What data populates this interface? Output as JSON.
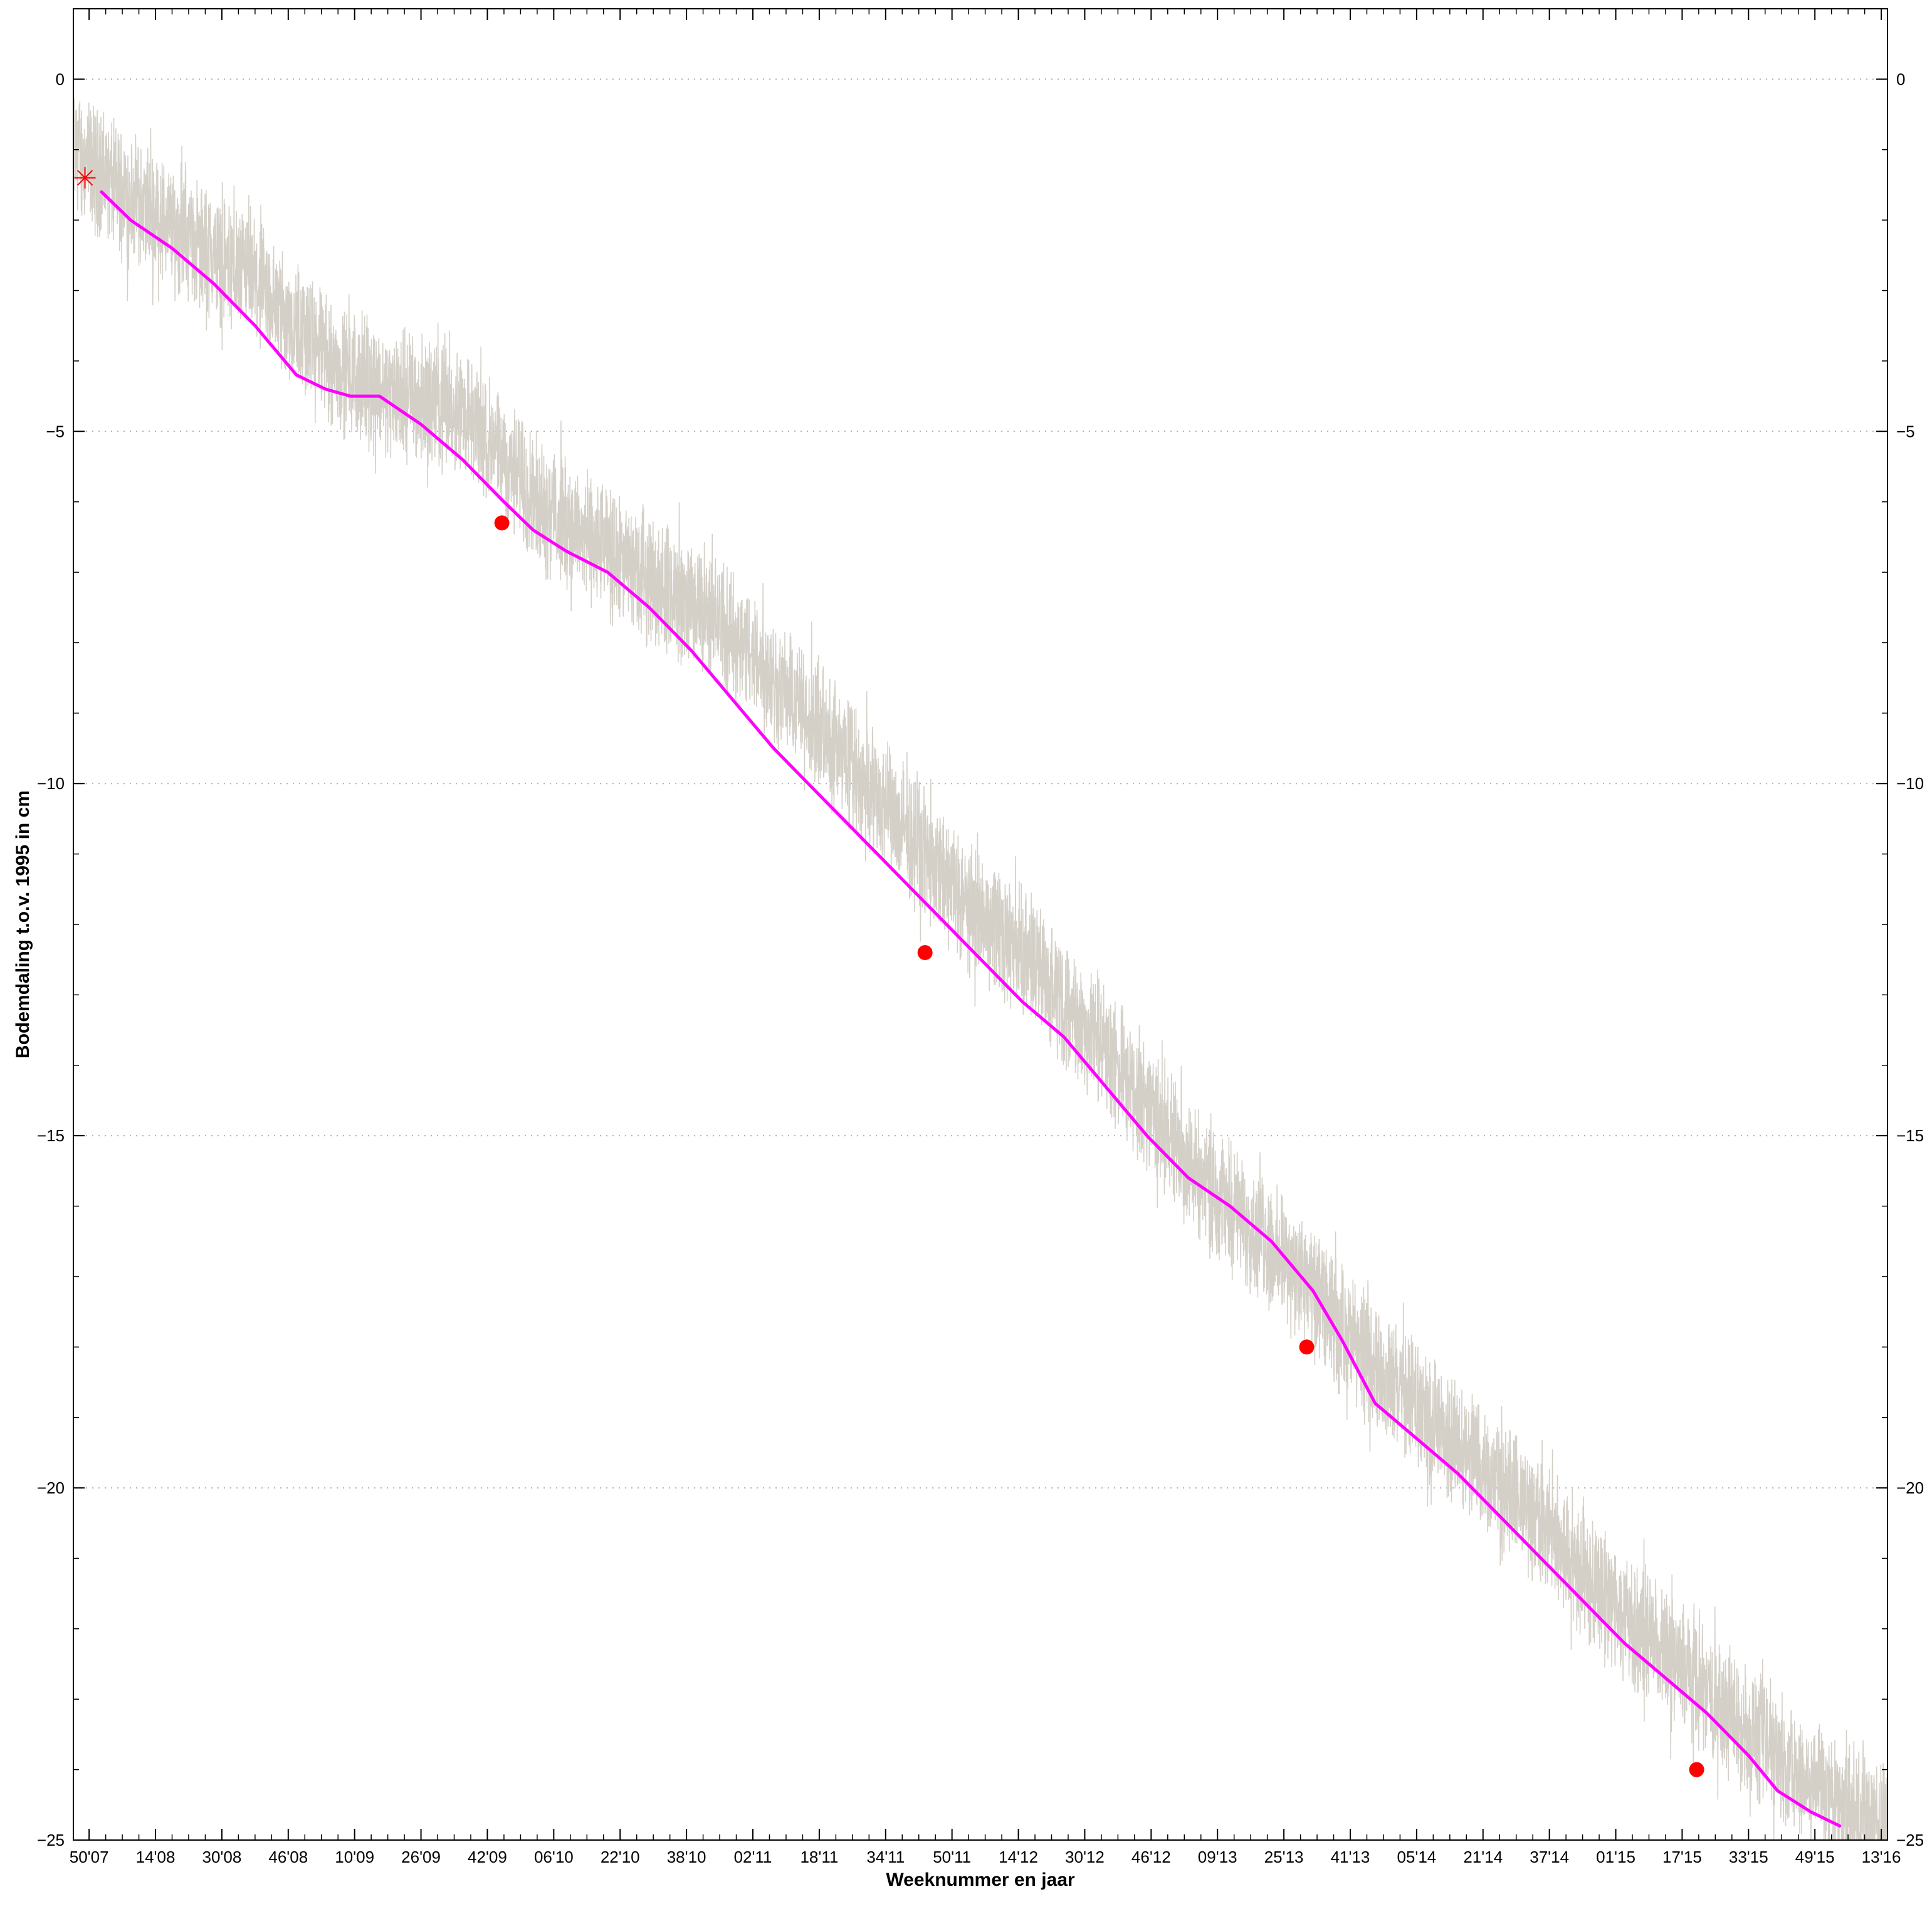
{
  "chart_data": {
    "type": "line",
    "title": "",
    "xlabel": "Weeknummer en jaar",
    "ylabel": "Bodemdaling t.o.v. 1995 in cm",
    "ylim": [
      -25,
      1
    ],
    "yticks": [
      0,
      -5,
      -10,
      -15,
      -20,
      -25
    ],
    "y_axis_both_sides": true,
    "grid": "horizontal dotted at major y ticks",
    "legend": "none",
    "xtick_labels": [
      "50'07",
      "14'08",
      "30'08",
      "46'08",
      "10'09",
      "26'09",
      "42'09",
      "06'10",
      "22'10",
      "38'10",
      "02'11",
      "18'11",
      "34'11",
      "50'11",
      "14'12",
      "30'12",
      "46'12",
      "09'13",
      "25'13",
      "41'13",
      "05'14",
      "21'14",
      "37'14",
      "01'15",
      "17'15",
      "33'15",
      "49'15",
      "13'16"
    ],
    "x_range_weeks": [
      -3.8,
      433.5
    ],
    "series": [
      {
        "kind": "raw_measurements",
        "color": "#d4d0c8",
        "style": "thin noisy line",
        "noise_range_cm": 1.3,
        "envelope": [
          [
            -3.8,
            -1.0
          ],
          [
            10,
            -1.7
          ],
          [
            40,
            -2.9
          ],
          [
            60,
            -4.1
          ],
          [
            70,
            -4.4
          ],
          [
            90,
            -4.7
          ],
          [
            110,
            -6.1
          ],
          [
            130,
            -6.9
          ],
          [
            150,
            -7.6
          ],
          [
            170,
            -8.8
          ],
          [
            190,
            -10.2
          ],
          [
            210,
            -11.6
          ],
          [
            230,
            -12.7
          ],
          [
            250,
            -14.2
          ],
          [
            270,
            -15.7
          ],
          [
            290,
            -16.9
          ],
          [
            310,
            -18.3
          ],
          [
            330,
            -19.4
          ],
          [
            350,
            -20.5
          ],
          [
            370,
            -21.8
          ],
          [
            390,
            -22.9
          ],
          [
            410,
            -24.0
          ],
          [
            433.5,
            -24.8
          ]
        ]
      },
      {
        "kind": "trend",
        "color": "#ff00ff",
        "style": "thick line",
        "points": [
          [
            3,
            -1.6
          ],
          [
            10,
            -2.0
          ],
          [
            20,
            -2.4
          ],
          [
            30,
            -2.9
          ],
          [
            40,
            -3.5
          ],
          [
            50,
            -4.2
          ],
          [
            57,
            -4.4
          ],
          [
            63,
            -4.5
          ],
          [
            70,
            -4.5
          ],
          [
            80,
            -4.9
          ],
          [
            90,
            -5.4
          ],
          [
            100,
            -6.0
          ],
          [
            107,
            -6.4
          ],
          [
            115,
            -6.7
          ],
          [
            125,
            -7.0
          ],
          [
            135,
            -7.5
          ],
          [
            145,
            -8.1
          ],
          [
            155,
            -8.8
          ],
          [
            165,
            -9.5
          ],
          [
            175,
            -10.1
          ],
          [
            185,
            -10.7
          ],
          [
            195,
            -11.3
          ],
          [
            205,
            -11.9
          ],
          [
            215,
            -12.5
          ],
          [
            225,
            -13.1
          ],
          [
            235,
            -13.6
          ],
          [
            245,
            -14.3
          ],
          [
            255,
            -15.0
          ],
          [
            265,
            -15.6
          ],
          [
            275,
            -16.0
          ],
          [
            285,
            -16.5
          ],
          [
            295,
            -17.2
          ],
          [
            302,
            -17.9
          ],
          [
            310,
            -18.8
          ],
          [
            320,
            -19.3
          ],
          [
            330,
            -19.8
          ],
          [
            340,
            -20.4
          ],
          [
            350,
            -21.0
          ],
          [
            360,
            -21.6
          ],
          [
            370,
            -22.2
          ],
          [
            380,
            -22.7
          ],
          [
            390,
            -23.2
          ],
          [
            400,
            -23.8
          ],
          [
            407,
            -24.3
          ],
          [
            415,
            -24.6
          ],
          [
            422,
            -24.8
          ]
        ]
      },
      {
        "kind": "reference_measurements",
        "color": "#ff0000",
        "style": "filled circle markers",
        "points": [
          [
            99.5,
            -6.3
          ],
          [
            201.5,
            -12.4
          ],
          [
            293.5,
            -18.0
          ],
          [
            387.5,
            -24.0
          ]
        ]
      },
      {
        "kind": "start_marker",
        "color": "#ff0000",
        "style": "asterisk marker",
        "points": [
          [
            -1.0,
            -1.4
          ]
        ]
      }
    ]
  }
}
